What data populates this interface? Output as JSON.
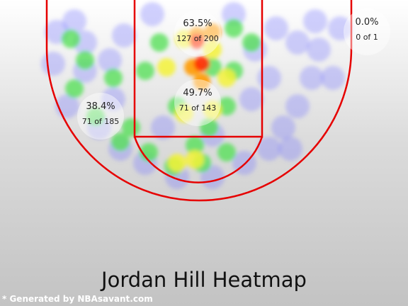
{
  "chart_data": {
    "type": "heatmap",
    "title": "Jordan Hill Heatmap",
    "zones": [
      {
        "name": "restricted-area-top",
        "pct": "63.5%",
        "made_of": "127 of 200",
        "made": 127,
        "attempts": 200
      },
      {
        "name": "paint",
        "pct": "49.7%",
        "made_of": "71 of 143",
        "made": 71,
        "attempts": 143
      },
      {
        "name": "left-mid-range",
        "pct": "38.4%",
        "made_of": "71 of 185",
        "made": 71,
        "attempts": 185
      },
      {
        "name": "right-corner",
        "pct": "0.0%",
        "made_of": "0 of 1",
        "made": 0,
        "attempts": 1
      }
    ]
  },
  "footer": "* Generated by NBAsavant.com",
  "colors": {
    "court_lines": "#e60000",
    "heat_low": "#7b7bff",
    "heat_mid": "#57e05a",
    "heat_high": "#ff2a00"
  }
}
